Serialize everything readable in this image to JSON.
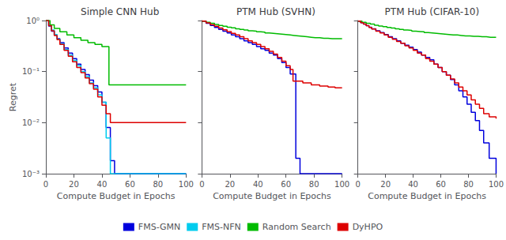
{
  "chart_data": [
    {
      "type": "line",
      "line_style": "step",
      "title": "Simple CNN Hub",
      "xlabel": "Compute Budget in Epochs",
      "ylabel": "Regret",
      "log": "y",
      "grid": false,
      "legend": "bottom",
      "xlim": [
        0,
        100
      ],
      "xticks": [
        0,
        20,
        40,
        60,
        80,
        100
      ],
      "ylim": [
        0.001,
        1.0
      ],
      "yticks": [
        {
          "value": 0.001,
          "label": "10⁻³"
        },
        {
          "value": 0.01,
          "label": "10⁻²"
        },
        {
          "value": 0.1,
          "label": "10⁻¹"
        },
        {
          "value": 1,
          "label": "10⁰"
        }
      ],
      "series": [
        {
          "name": "FMS-GMN",
          "color": "#0000dd",
          "x": [
            0,
            2,
            4,
            6,
            8,
            10,
            13,
            16,
            19,
            22,
            25,
            28,
            31,
            34,
            37,
            40,
            43,
            46,
            49,
            100
          ],
          "values": [
            1.0,
            0.78,
            0.62,
            0.52,
            0.44,
            0.37,
            0.29,
            0.23,
            0.18,
            0.14,
            0.11,
            0.087,
            0.068,
            0.053,
            0.04,
            0.025,
            0.008,
            0.0018,
            0.001,
            0.001
          ]
        },
        {
          "name": "FMS-NFN",
          "color": "#00ccee",
          "x": [
            0,
            2,
            4,
            6,
            8,
            10,
            13,
            16,
            19,
            22,
            25,
            28,
            31,
            34,
            37,
            40,
            43,
            46,
            100
          ],
          "values": [
            1.0,
            0.8,
            0.65,
            0.53,
            0.43,
            0.35,
            0.27,
            0.21,
            0.165,
            0.13,
            0.1,
            0.08,
            0.06,
            0.048,
            0.035,
            0.025,
            0.005,
            0.001,
            0.001
          ]
        },
        {
          "name": "Random Search",
          "color": "#00bb00",
          "x": [
            0,
            3,
            6,
            10,
            15,
            20,
            25,
            30,
            35,
            40,
            45,
            55,
            100
          ],
          "values": [
            1.0,
            0.82,
            0.7,
            0.6,
            0.52,
            0.46,
            0.41,
            0.37,
            0.34,
            0.31,
            0.055,
            0.055,
            0.055
          ]
        },
        {
          "name": "DyHPO",
          "color": "#dd0000",
          "x": [
            0,
            2,
            4,
            6,
            8,
            10,
            13,
            16,
            19,
            22,
            25,
            28,
            31,
            34,
            37,
            40,
            43,
            46,
            50,
            55,
            100
          ],
          "values": [
            1.0,
            0.79,
            0.63,
            0.51,
            0.42,
            0.34,
            0.26,
            0.2,
            0.155,
            0.12,
            0.095,
            0.075,
            0.058,
            0.045,
            0.032,
            0.022,
            0.015,
            0.01,
            0.01,
            0.01,
            0.01
          ]
        }
      ]
    },
    {
      "type": "line",
      "line_style": "step",
      "title": "PTM Hub (SVHN)",
      "xlabel": "Compute Budget in Epochs",
      "log": "y",
      "grid": false,
      "legend": "bottom",
      "tick_labels": "x",
      "xlim": [
        0,
        100
      ],
      "xticks": [
        0,
        20,
        40,
        60,
        80,
        100
      ],
      "ylim": [
        0.001,
        1.0
      ],
      "yticks": [
        {
          "value": 0.001,
          "label": "10⁻³"
        },
        {
          "value": 0.01,
          "label": "10⁻²"
        },
        {
          "value": 0.1,
          "label": "10⁻¹"
        },
        {
          "value": 1,
          "label": "10⁰"
        }
      ],
      "series": [
        {
          "name": "FMS-GMN",
          "color": "#0000dd",
          "x": [
            0,
            3,
            6,
            9,
            12,
            15,
            18,
            21,
            24,
            27,
            30,
            33,
            36,
            39,
            42,
            45,
            48,
            51,
            54,
            57,
            60,
            63,
            67,
            70,
            100
          ],
          "values": [
            0.97,
            0.88,
            0.8,
            0.73,
            0.67,
            0.62,
            0.57,
            0.52,
            0.48,
            0.44,
            0.4,
            0.37,
            0.34,
            0.31,
            0.28,
            0.26,
            0.23,
            0.21,
            0.18,
            0.15,
            0.12,
            0.09,
            0.002,
            0.001,
            0.001
          ]
        },
        {
          "name": "Random Search",
          "color": "#00bb00",
          "x": [
            0,
            3,
            6,
            9,
            12,
            15,
            18,
            21,
            24,
            27,
            30,
            33,
            36,
            39,
            42,
            45,
            48,
            51,
            54,
            57,
            60,
            63,
            66,
            69,
            72,
            75,
            78,
            81,
            84,
            87,
            90,
            93,
            96,
            100
          ],
          "values": [
            0.97,
            0.92,
            0.88,
            0.84,
            0.8,
            0.77,
            0.74,
            0.72,
            0.69,
            0.67,
            0.65,
            0.63,
            0.62,
            0.6,
            0.59,
            0.57,
            0.56,
            0.55,
            0.54,
            0.53,
            0.52,
            0.51,
            0.5,
            0.49,
            0.48,
            0.47,
            0.46,
            0.46,
            0.45,
            0.45,
            0.44,
            0.44,
            0.44,
            0.44
          ]
        },
        {
          "name": "DyHPO",
          "color": "#dd0000",
          "x": [
            0,
            3,
            6,
            9,
            12,
            15,
            18,
            21,
            24,
            27,
            30,
            33,
            36,
            39,
            42,
            45,
            48,
            51,
            54,
            57,
            60,
            63,
            65,
            68,
            72,
            78,
            84,
            90,
            95,
            100
          ],
          "values": [
            0.97,
            0.9,
            0.83,
            0.77,
            0.71,
            0.66,
            0.61,
            0.56,
            0.52,
            0.48,
            0.44,
            0.4,
            0.37,
            0.34,
            0.31,
            0.28,
            0.25,
            0.22,
            0.19,
            0.16,
            0.13,
            0.11,
            0.065,
            0.065,
            0.06,
            0.055,
            0.052,
            0.05,
            0.048,
            0.047
          ]
        }
      ]
    },
    {
      "type": "line",
      "line_style": "step",
      "title": "PTM Hub (CIFAR-10)",
      "xlabel": "Compute Budget in Epochs",
      "log": "y",
      "grid": false,
      "legend": "bottom",
      "tick_labels": "x",
      "xlim": [
        0,
        100
      ],
      "xticks": [
        0,
        20,
        40,
        60,
        80,
        100
      ],
      "ylim": [
        0.001,
        1.0
      ],
      "yticks": [
        {
          "value": 0.001,
          "label": "10⁻³"
        },
        {
          "value": 0.01,
          "label": "10⁻²"
        },
        {
          "value": 0.1,
          "label": "10⁻¹"
        },
        {
          "value": 1,
          "label": "10⁰"
        }
      ],
      "series": [
        {
          "name": "FMS-GMN",
          "color": "#0000dd",
          "x": [
            0,
            2,
            4,
            6,
            8,
            10,
            13,
            16,
            19,
            22,
            25,
            28,
            31,
            34,
            37,
            40,
            43,
            46,
            49,
            52,
            55,
            58,
            61,
            64,
            67,
            70,
            73,
            76,
            79,
            82,
            85,
            88,
            91,
            95,
            100
          ],
          "values": [
            0.97,
            0.91,
            0.85,
            0.79,
            0.74,
            0.69,
            0.63,
            0.58,
            0.53,
            0.48,
            0.44,
            0.4,
            0.36,
            0.33,
            0.3,
            0.27,
            0.24,
            0.21,
            0.19,
            0.17,
            0.14,
            0.12,
            0.1,
            0.085,
            0.07,
            0.055,
            0.042,
            0.032,
            0.023,
            0.016,
            0.011,
            0.007,
            0.004,
            0.002,
            0.001
          ]
        },
        {
          "name": "Random Search",
          "color": "#00bb00",
          "x": [
            0,
            3,
            6,
            9,
            12,
            15,
            18,
            21,
            24,
            27,
            30,
            33,
            36,
            39,
            42,
            45,
            48,
            51,
            54,
            57,
            60,
            63,
            66,
            69,
            72,
            75,
            78,
            81,
            84,
            87,
            90,
            93,
            96,
            100
          ],
          "values": [
            0.97,
            0.92,
            0.88,
            0.85,
            0.81,
            0.78,
            0.76,
            0.73,
            0.71,
            0.69,
            0.67,
            0.65,
            0.64,
            0.62,
            0.61,
            0.6,
            0.58,
            0.57,
            0.56,
            0.55,
            0.54,
            0.53,
            0.52,
            0.52,
            0.51,
            0.5,
            0.5,
            0.49,
            0.49,
            0.48,
            0.48,
            0.47,
            0.47,
            0.47
          ]
        },
        {
          "name": "DyHPO",
          "color": "#dd0000",
          "x": [
            0,
            2,
            4,
            6,
            8,
            10,
            13,
            16,
            19,
            22,
            25,
            28,
            31,
            34,
            37,
            40,
            43,
            46,
            49,
            52,
            55,
            58,
            61,
            64,
            67,
            70,
            73,
            76,
            79,
            82,
            85,
            88,
            91,
            95,
            100
          ],
          "values": [
            0.97,
            0.91,
            0.85,
            0.79,
            0.73,
            0.68,
            0.62,
            0.57,
            0.52,
            0.47,
            0.43,
            0.39,
            0.36,
            0.32,
            0.29,
            0.26,
            0.23,
            0.21,
            0.18,
            0.16,
            0.14,
            0.12,
            0.1,
            0.085,
            0.072,
            0.06,
            0.05,
            0.042,
            0.035,
            0.028,
            0.023,
            0.019,
            0.015,
            0.013,
            0.012
          ]
        }
      ]
    }
  ]
}
